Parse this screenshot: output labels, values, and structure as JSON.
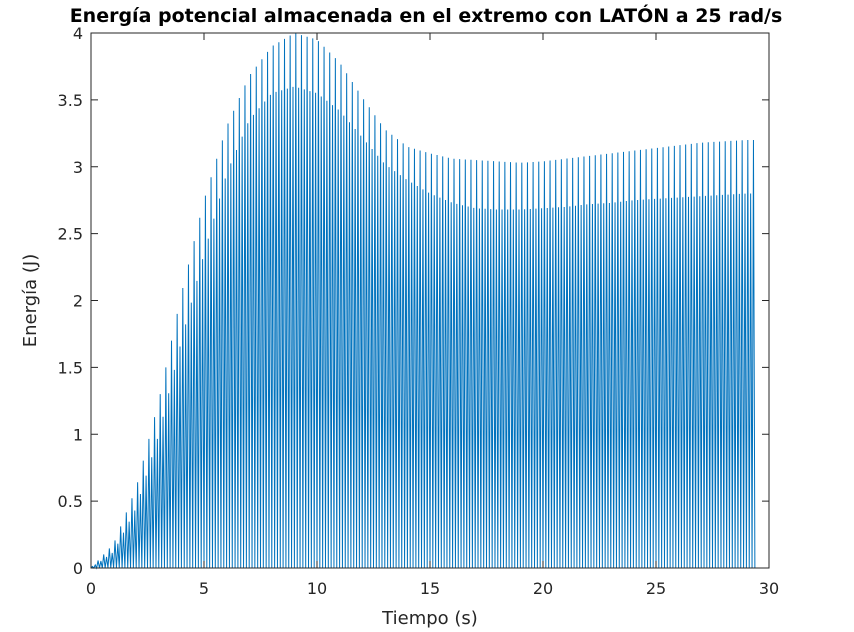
{
  "chart_data": {
    "type": "line",
    "title": "Energía potencial almacenada en el extremo con LATÓN a 25 rad/s",
    "xlabel": "Tiempo (s)",
    "ylabel": "Energía (J)",
    "xlim": [
      0,
      30
    ],
    "ylim": [
      0,
      4
    ],
    "xticks": [
      0,
      5,
      10,
      15,
      20,
      25,
      30
    ],
    "xtick_labels": [
      "0",
      "5",
      "10",
      "15",
      "20",
      "25",
      "30"
    ],
    "yticks": [
      0,
      0.5,
      1,
      1.5,
      2,
      2.5,
      3,
      3.5,
      4
    ],
    "ytick_labels": [
      "0",
      "0.5",
      "1",
      "1.5",
      "2",
      "2.5",
      "3",
      "3.5",
      "4"
    ],
    "grid": false,
    "line_color": "#0072BD",
    "series": [
      {
        "x_end": 29.4,
        "oscillation_frequency_hz": 4.0,
        "envelope_upper": {
          "x": [
            0,
            1,
            2,
            3,
            4,
            5,
            6,
            7,
            8,
            9,
            10,
            11,
            12,
            13,
            14,
            15,
            16,
            17,
            18,
            19,
            20,
            21,
            22,
            23,
            24,
            25,
            26,
            27,
            28,
            29,
            29.4
          ],
          "y": [
            0,
            0.18,
            0.6,
            1.25,
            2.05,
            2.75,
            3.3,
            3.68,
            3.9,
            4.0,
            3.95,
            3.78,
            3.52,
            3.28,
            3.15,
            3.1,
            3.06,
            3.05,
            3.04,
            3.03,
            3.04,
            3.06,
            3.08,
            3.1,
            3.12,
            3.14,
            3.16,
            3.18,
            3.19,
            3.2,
            3.2
          ]
        },
        "envelope_secondary": {
          "x": [
            0,
            1,
            2,
            3,
            4,
            5,
            6,
            7,
            8,
            9,
            10,
            11,
            12,
            13,
            14,
            15,
            16,
            17,
            18,
            19,
            20,
            21,
            22,
            23,
            24,
            25,
            26,
            27,
            28,
            29,
            29.4
          ],
          "y": [
            0,
            0.12,
            0.45,
            1.0,
            1.7,
            2.35,
            2.95,
            3.35,
            3.55,
            3.6,
            3.55,
            3.42,
            3.22,
            3.02,
            2.9,
            2.8,
            2.73,
            2.69,
            2.68,
            2.68,
            2.69,
            2.7,
            2.72,
            2.73,
            2.75,
            2.76,
            2.77,
            2.78,
            2.79,
            2.8,
            2.8
          ]
        },
        "envelope_lower": {
          "x": [
            0,
            1,
            2,
            3,
            4,
            5,
            6,
            7,
            8,
            9,
            10,
            11,
            12,
            13,
            14,
            15,
            16,
            17,
            18,
            19,
            20,
            21,
            22,
            23,
            24,
            25,
            26,
            27,
            28,
            29,
            29.4
          ],
          "y": [
            0,
            0,
            0,
            0,
            0,
            0,
            0,
            0,
            0,
            0,
            0,
            0,
            0,
            0,
            0,
            0,
            0,
            0,
            0,
            0,
            0,
            0,
            0,
            0,
            0,
            0,
            0,
            0,
            0,
            0,
            0
          ]
        }
      }
    ]
  }
}
